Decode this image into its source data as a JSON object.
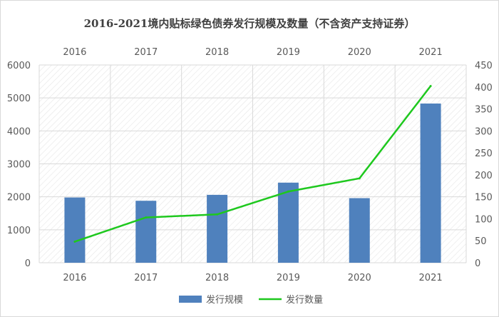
{
  "chart_data": {
    "type": "bar",
    "title": "2016-2021境内贴标绿色债券发行规模及数量（不含资产支持证券）",
    "categories": [
      "2016",
      "2017",
      "2018",
      "2019",
      "2020",
      "2021"
    ],
    "series": [
      {
        "name": "发行规模",
        "type": "bar",
        "axis": "left",
        "values": [
          1980,
          1880,
          2060,
          2430,
          1960,
          4830
        ],
        "color": "#4f81bd"
      },
      {
        "name": "发行数量",
        "type": "line",
        "axis": "right",
        "values": [
          48,
          103,
          110,
          162,
          192,
          402
        ],
        "color": "#1ec81e"
      }
    ],
    "y_left": {
      "min": 0,
      "max": 6000,
      "ticks": [
        "0",
        "1000",
        "2000",
        "3000",
        "4000",
        "5000",
        "6000"
      ]
    },
    "y_right": {
      "min": 0,
      "max": 450,
      "ticks": [
        "0",
        "50",
        "100",
        "150",
        "200",
        "250",
        "300",
        "350",
        "400",
        "450"
      ]
    },
    "xlabel": "",
    "ylabel": "",
    "grid": true,
    "plot_background": "diagonal-hatch",
    "x_tick_labels_top_and_bottom": true,
    "legend": {
      "position": "bottom-center"
    }
  }
}
